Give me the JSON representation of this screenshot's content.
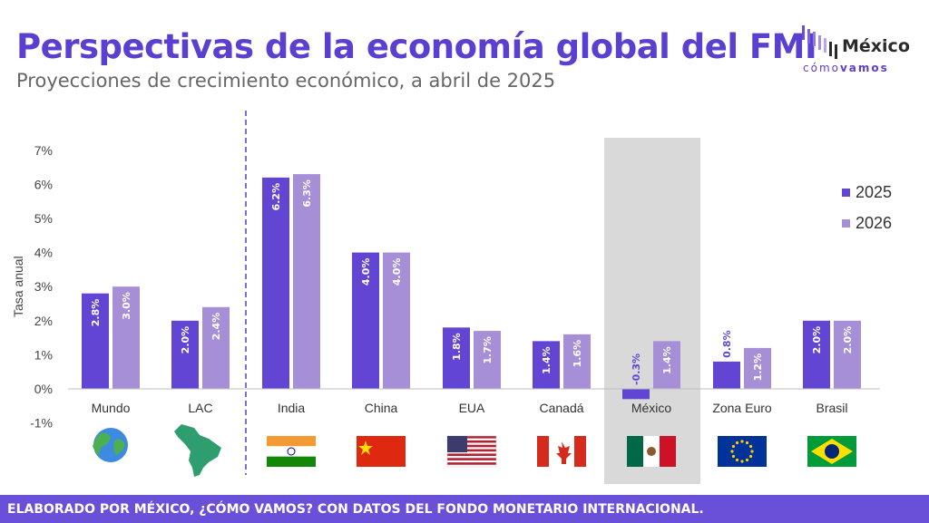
{
  "header": {
    "title": "Perspectivas de la economía global del FMI",
    "subtitle": "Proyecciones de crecimiento económico, a abril de 2025"
  },
  "logo": {
    "name": "México",
    "tag_a": "cómo",
    "tag_b": "vamos"
  },
  "footer": {
    "text": "ELABORADO POR MÉXICO, ¿CÓMO VAMOS? CON DATOS DEL FONDO MONETARIO INTERNACIONAL."
  },
  "colors": {
    "c2025": "#6246d3",
    "c2026": "#a78fd7",
    "title": "#5b3fd0",
    "highlight": "#d9d9d9"
  },
  "flags": [
    "world-globe",
    "latin-america-map",
    "india-flag",
    "china-flag",
    "usa-flag",
    "canada-flag",
    "mexico-flag",
    "eu-flag",
    "brazil-flag"
  ],
  "chart_data": {
    "type": "bar",
    "title": "Perspectivas de la economía global del FMI",
    "subtitle": "Proyecciones de crecimiento económico, a abril de 2025",
    "ylabel": "Tasa anual",
    "ylim": [
      -1,
      7
    ],
    "yticks": [
      "-1%",
      "0%",
      "1%",
      "2%",
      "3%",
      "4%",
      "5%",
      "6%",
      "7%"
    ],
    "categories": [
      "Mundo",
      "LAC",
      "India",
      "China",
      "EUA",
      "Canadá",
      "México",
      "Zona Euro",
      "Brasil"
    ],
    "series": [
      {
        "name": "2025",
        "values": [
          2.8,
          2.0,
          6.2,
          4.0,
          1.8,
          1.4,
          -0.3,
          0.8,
          2.0
        ],
        "labels": [
          "2.8%",
          "2.0%",
          "6.2%",
          "4.0%",
          "1.8%",
          "1.4%",
          "-0.3%",
          "0.8%",
          "2.0%"
        ]
      },
      {
        "name": "2026",
        "values": [
          3.0,
          2.4,
          6.3,
          4.0,
          1.7,
          1.6,
          1.4,
          1.2,
          2.0
        ],
        "labels": [
          "3.0%",
          "2.4%",
          "6.3%",
          "4.0%",
          "1.7%",
          "1.6%",
          "1.4%",
          "1.2%",
          "2.0%"
        ]
      }
    ],
    "highlight_category": "México",
    "separator_after": "LAC",
    "legend_position": "right",
    "grid": false
  }
}
